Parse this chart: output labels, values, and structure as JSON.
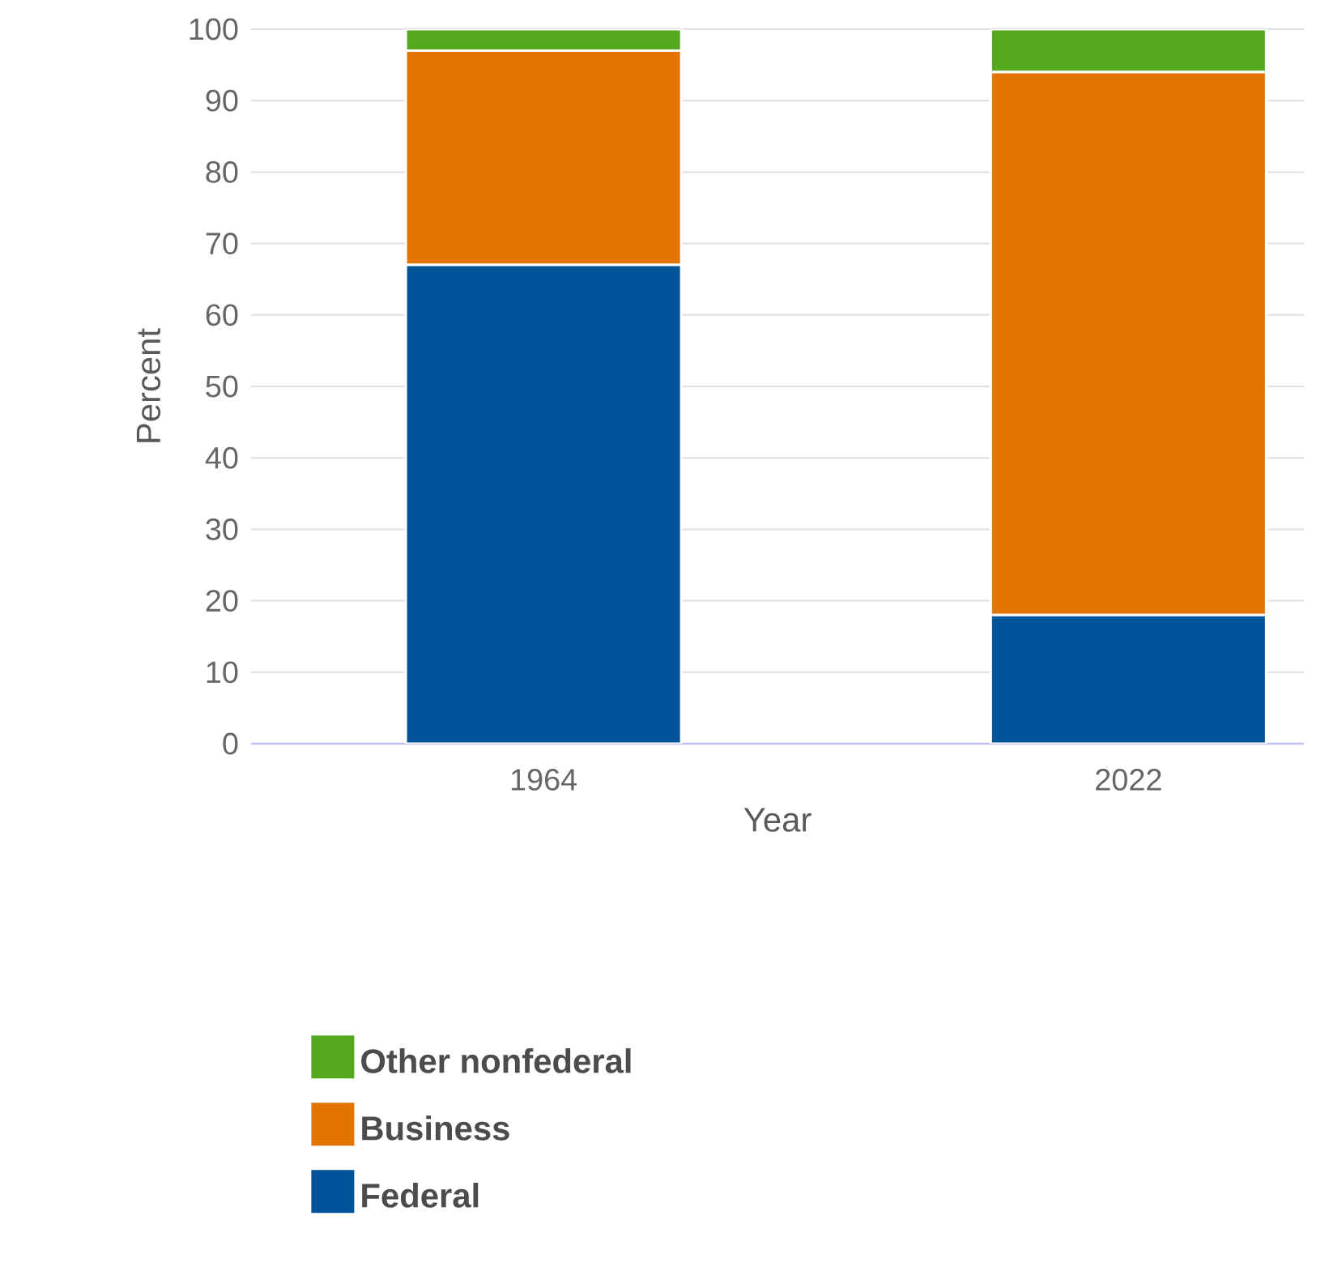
{
  "chart_data": {
    "type": "bar",
    "stacked": true,
    "xlabel": "Year",
    "ylabel": "Percent",
    "categories": [
      "1964",
      "2022"
    ],
    "series": [
      {
        "name": "Federal",
        "color": "#00559a",
        "values": [
          67,
          18
        ]
      },
      {
        "name": "Business",
        "color": "#e37400",
        "values": [
          30,
          76
        ]
      },
      {
        "name": "Other nonfederal",
        "color": "#54a81e",
        "values": [
          3,
          6
        ]
      }
    ],
    "ylim": [
      0,
      100
    ],
    "yticks": [
      0,
      10,
      20,
      30,
      40,
      50,
      60,
      70,
      80,
      90,
      100
    ],
    "grid": "y",
    "legend": "bottom"
  }
}
